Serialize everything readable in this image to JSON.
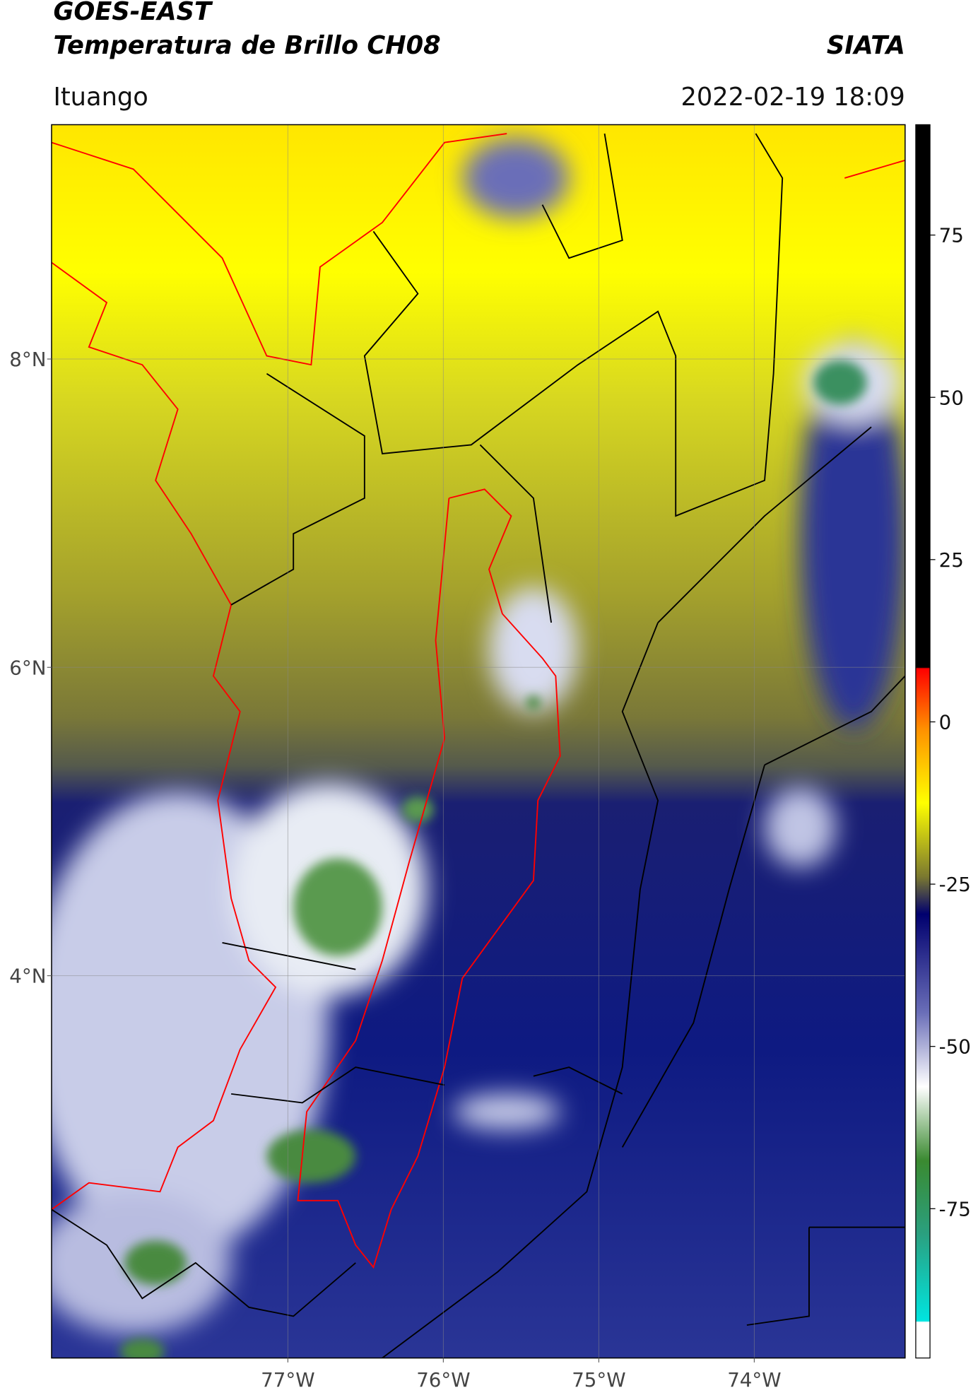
{
  "header": {
    "title": "GOES-EAST",
    "subtitle": "Temperatura de Brillo CH08",
    "brand": "SIATA",
    "region": "Ituango",
    "datetime": "2022-02-19 18:09"
  },
  "map": {
    "xlim": [
      -78.52,
      -73.03
    ],
    "ylim": [
      1.52,
      9.52
    ],
    "lat_ticks": [
      {
        "value": 8,
        "label": "8°N"
      },
      {
        "value": 6,
        "label": "6°N"
      },
      {
        "value": 4,
        "label": "4°N"
      }
    ],
    "lon_ticks": [
      {
        "value": -77,
        "label": "77°W"
      },
      {
        "value": -76,
        "label": "76°W"
      },
      {
        "value": -75,
        "label": "75°W"
      },
      {
        "value": -74,
        "label": "74°W"
      }
    ],
    "grid": true
  },
  "colorbar": {
    "lim": [
      -98,
      92
    ],
    "ticks": [
      75,
      50,
      25,
      0,
      -25,
      -50,
      -75
    ]
  }
}
